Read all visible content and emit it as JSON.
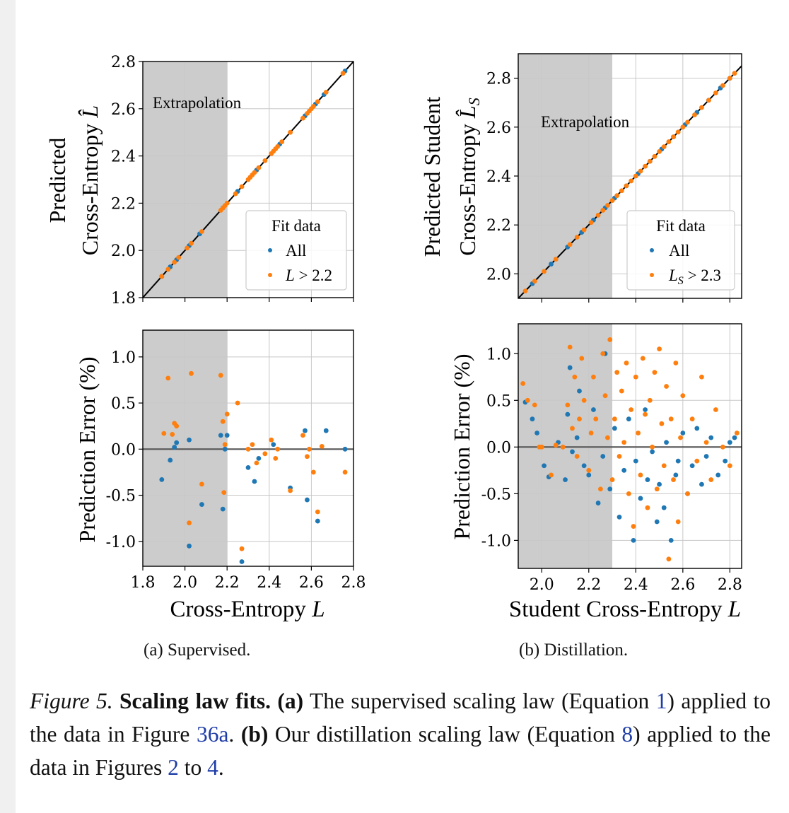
{
  "colors": {
    "all": "#1f77b4",
    "subset": "#ff7f0e",
    "shade": "#cccccc",
    "grid": "#c8c8c8",
    "diag": "#000000",
    "zero": "#555555"
  },
  "icons": [
    "marker-dot-blue",
    "marker-dot-orange"
  ],
  "panels": {
    "a": {
      "subcaption": "(a) Supervised.",
      "xlabel": "Cross-Entropy L",
      "xlabel_main": "Cross-Entropy ",
      "xlabel_sym": "L",
      "top": {
        "ylabel_line1": "Predicted",
        "ylabel_line2": "Cross-Entropy L̂",
        "ylabel_line2_main": "Cross-Entropy ",
        "ylabel_line2_sym": "L̂",
        "annotation": "Extrapolation",
        "legend_title": "Fit data",
        "legend_all": "All",
        "legend_subset": "L > 2.2",
        "legend_subset_sym": "L",
        "legend_subset_rest": " > 2.2"
      },
      "bottom": {
        "ylabel": "Prediction Error (%)"
      }
    },
    "b": {
      "subcaption": "(b) Distillation.",
      "xlabel": "Student Cross-Entropy L",
      "xlabel_main": "Student Cross-Entropy ",
      "xlabel_sym": "L",
      "top": {
        "ylabel_line1": "Predicted Student",
        "ylabel_line2": "Cross-Entropy L̂S",
        "ylabel_line2_main": "Cross-Entropy ",
        "ylabel_line2_sym": "L̂",
        "ylabel_line2_sub": "S",
        "annotation": "Extrapolation",
        "legend_title": "Fit data",
        "legend_all": "All",
        "legend_subset": "LS > 2.3",
        "legend_subset_sym": "L",
        "legend_subset_sub": "S",
        "legend_subset_rest": " > 2.3"
      },
      "bottom": {
        "ylabel": "Prediction Error (%)"
      }
    }
  },
  "caption": {
    "fig_label": "Figure 5.",
    "title": "Scaling law fits.",
    "a_label": "(a)",
    "text1": "The supervised scaling law (Equation",
    "ref_eq1": "1",
    "text2": ") applied to the data in Figure",
    "ref_fig36a": "36a",
    "text3": ".",
    "b_label": "(b)",
    "text4": "Our distillation scaling law (Equation",
    "ref_eq8": "8",
    "text5": ") applied to the data in Figures",
    "ref_fig2": "2",
    "text6": "to",
    "ref_fig4": "4",
    "text7": "."
  },
  "chart_data": [
    {
      "id": "a-top",
      "type": "scatter",
      "title": "",
      "xlabel": "",
      "ylabel": "Predicted Cross-Entropy L̂",
      "xlim": [
        1.8,
        2.8
      ],
      "ylim": [
        1.8,
        2.8
      ],
      "xticks": [
        1.8,
        2.0,
        2.2,
        2.4,
        2.6,
        2.8
      ],
      "yticks": [
        1.8,
        2.0,
        2.2,
        2.4,
        2.6,
        2.8
      ],
      "tick_labels_x": [],
      "tick_labels_y": [
        "1.8",
        "2.0",
        "2.2",
        "2.4",
        "2.6",
        "2.8"
      ],
      "grid": true,
      "shade_x": [
        1.8,
        2.2
      ],
      "reference_line": "y = x",
      "legend": "right",
      "series": [
        {
          "name": "All",
          "x": [
            1.89,
            1.93,
            1.96,
            2.02,
            2.07,
            2.18,
            2.25,
            2.34,
            2.45,
            2.57,
            2.62,
            2.66,
            2.76
          ],
          "y": [
            1.89,
            1.93,
            1.96,
            2.02,
            2.07,
            2.18,
            2.25,
            2.34,
            2.45,
            2.57,
            2.62,
            2.66,
            2.76
          ]
        },
        {
          "name": "L > 2.2",
          "x": [
            1.89,
            1.92,
            1.95,
            1.97,
            2.01,
            2.03,
            2.08,
            2.17,
            2.18,
            2.19,
            2.2,
            2.24,
            2.27,
            2.3,
            2.31,
            2.32,
            2.33,
            2.35,
            2.38,
            2.41,
            2.42,
            2.43,
            2.44,
            2.46,
            2.5,
            2.56,
            2.58,
            2.59,
            2.6,
            2.61,
            2.63,
            2.67,
            2.75
          ],
          "y": [
            1.89,
            1.92,
            1.95,
            1.97,
            2.01,
            2.03,
            2.08,
            2.17,
            2.18,
            2.19,
            2.2,
            2.24,
            2.27,
            2.3,
            2.31,
            2.32,
            2.33,
            2.35,
            2.38,
            2.41,
            2.42,
            2.43,
            2.44,
            2.46,
            2.5,
            2.56,
            2.58,
            2.59,
            2.6,
            2.61,
            2.63,
            2.67,
            2.75
          ]
        }
      ]
    },
    {
      "id": "a-bottom",
      "type": "scatter",
      "title": "",
      "xlabel": "Cross-Entropy L",
      "ylabel": "Prediction Error (%)",
      "xlim": [
        1.8,
        2.8
      ],
      "ylim": [
        -1.27,
        1.29
      ],
      "xticks": [
        1.8,
        2.0,
        2.2,
        2.4,
        2.6,
        2.8
      ],
      "yticks": [
        -1.0,
        -0.5,
        0.0,
        0.5,
        1.0
      ],
      "tick_labels_x": [
        "1.8",
        "2.0",
        "2.2",
        "2.4",
        "2.6",
        "2.8"
      ],
      "tick_labels_y": [
        "-1.0",
        "-0.5",
        "0.0",
        "0.5",
        "1.0"
      ],
      "grid": true,
      "shade_x": [
        1.8,
        2.2
      ],
      "reference_line": "y = 0",
      "series": [
        {
          "name": "All",
          "x": [
            1.89,
            1.93,
            1.95,
            1.96,
            2.02,
            2.02,
            2.08,
            2.17,
            2.18,
            2.19,
            2.2,
            2.27,
            2.3,
            2.33,
            2.35,
            2.42,
            2.5,
            2.57,
            2.58,
            2.63,
            2.67,
            2.76
          ],
          "y": [
            -0.33,
            -0.12,
            0.02,
            0.07,
            0.1,
            -1.05,
            -0.6,
            0.15,
            -0.65,
            0.0,
            0.15,
            -1.22,
            -0.2,
            -0.35,
            -0.1,
            0.05,
            -0.42,
            0.2,
            -0.55,
            -0.78,
            0.2,
            0.0
          ]
        },
        {
          "name": "L > 2.2",
          "x": [
            1.9,
            1.92,
            1.94,
            1.95,
            1.96,
            2.02,
            2.03,
            2.08,
            2.17,
            2.18,
            2.185,
            2.19,
            2.2,
            2.25,
            2.27,
            2.3,
            2.32,
            2.34,
            2.38,
            2.41,
            2.43,
            2.44,
            2.5,
            2.56,
            2.58,
            2.59,
            2.61,
            2.63,
            2.65,
            2.76
          ],
          "y": [
            0.17,
            0.77,
            0.16,
            0.28,
            0.25,
            -0.8,
            0.82,
            -0.38,
            0.8,
            0.3,
            -0.47,
            0.05,
            0.38,
            0.5,
            -1.08,
            0.0,
            0.05,
            -0.15,
            -0.05,
            0.1,
            -0.1,
            0.0,
            -0.45,
            0.15,
            -0.08,
            0.0,
            -0.25,
            -0.68,
            0.03,
            -0.25
          ]
        }
      ]
    },
    {
      "id": "b-top",
      "type": "scatter",
      "title": "",
      "xlabel": "",
      "ylabel": "Predicted Student Cross-Entropy L̂S",
      "xlim": [
        1.9,
        2.85
      ],
      "ylim": [
        1.9,
        2.9
      ],
      "xticks": [
        2.0,
        2.2,
        2.4,
        2.6,
        2.8
      ],
      "yticks": [
        2.0,
        2.2,
        2.4,
        2.6,
        2.8
      ],
      "tick_labels_x": [],
      "tick_labels_y": [
        "2.0",
        "2.2",
        "2.4",
        "2.6",
        "2.8"
      ],
      "grid": true,
      "shade_x": [
        1.9,
        2.3
      ],
      "reference_line": "y = x",
      "legend": "right",
      "series": [
        {
          "name": "All",
          "x": [
            1.96,
            2.04,
            2.11,
            2.17,
            2.22,
            2.27,
            2.31,
            2.36,
            2.41,
            2.46,
            2.51,
            2.56,
            2.61,
            2.66,
            2.71,
            2.76,
            2.8
          ],
          "y": [
            1.96,
            2.04,
            2.11,
            2.17,
            2.22,
            2.27,
            2.31,
            2.36,
            2.41,
            2.46,
            2.51,
            2.56,
            2.61,
            2.66,
            2.71,
            2.76,
            2.8
          ]
        },
        {
          "name": "LS > 2.3",
          "x": [
            1.93,
            1.97,
            2.01,
            2.06,
            2.12,
            2.15,
            2.18,
            2.21,
            2.24,
            2.26,
            2.28,
            2.3,
            2.32,
            2.34,
            2.36,
            2.38,
            2.4,
            2.42,
            2.44,
            2.46,
            2.48,
            2.5,
            2.52,
            2.54,
            2.56,
            2.58,
            2.6,
            2.62,
            2.65,
            2.68,
            2.71,
            2.74,
            2.77,
            2.8,
            2.82
          ],
          "y": [
            1.93,
            1.97,
            2.01,
            2.06,
            2.12,
            2.15,
            2.18,
            2.21,
            2.24,
            2.26,
            2.28,
            2.3,
            2.32,
            2.34,
            2.36,
            2.38,
            2.4,
            2.42,
            2.44,
            2.46,
            2.48,
            2.5,
            2.52,
            2.54,
            2.56,
            2.58,
            2.6,
            2.62,
            2.65,
            2.68,
            2.71,
            2.74,
            2.77,
            2.8,
            2.82
          ]
        }
      ]
    },
    {
      "id": "b-bottom",
      "type": "scatter",
      "title": "",
      "xlabel": "Student Cross-Entropy L",
      "ylabel": "Prediction Error (%)",
      "xlim": [
        1.9,
        2.85
      ],
      "ylim": [
        -1.3,
        1.32
      ],
      "xticks": [
        2.0,
        2.2,
        2.4,
        2.6,
        2.8
      ],
      "yticks": [
        -1.0,
        -0.5,
        0.0,
        0.5,
        1.0
      ],
      "tick_labels_x": [
        "2.0",
        "2.2",
        "2.4",
        "2.6",
        "2.8"
      ],
      "tick_labels_y": [
        "-1.0",
        "-0.5",
        "0.0",
        "0.5",
        "1.0"
      ],
      "grid": true,
      "shade_x": [
        1.9,
        2.3
      ],
      "reference_line": "y = 0",
      "series": [
        {
          "name": "All",
          "x": [
            1.93,
            1.96,
            1.98,
            2.01,
            2.03,
            2.07,
            2.1,
            2.11,
            2.12,
            2.13,
            2.15,
            2.16,
            2.18,
            2.2,
            2.22,
            2.24,
            2.26,
            2.27,
            2.29,
            2.31,
            2.33,
            2.35,
            2.37,
            2.39,
            2.4,
            2.42,
            2.44,
            2.45,
            2.47,
            2.49,
            2.5,
            2.52,
            2.53,
            2.55,
            2.57,
            2.58,
            2.6,
            2.62,
            2.64,
            2.66,
            2.68,
            2.7,
            2.72,
            2.75,
            2.78,
            2.8,
            2.82
          ],
          "y": [
            0.48,
            0.3,
            0.15,
            -0.2,
            -0.32,
            0.05,
            -0.35,
            0.35,
            0.85,
            -0.05,
            0.1,
            0.6,
            -0.2,
            -0.3,
            0.4,
            -0.6,
            -0.1,
            1.0,
            -0.45,
            0.2,
            -0.75,
            -0.25,
            0.3,
            -1.0,
            -0.15,
            -0.55,
            0.4,
            -0.35,
            -0.05,
            -0.8,
            -0.4,
            -0.65,
            0.05,
            -1.0,
            -0.3,
            -0.15,
            0.15,
            -0.5,
            -0.2,
            0.2,
            -0.4,
            -0.1,
            0.1,
            -0.3,
            -0.15,
            0.05,
            0.1
          ]
        },
        {
          "name": "LS > 2.3",
          "x": [
            1.92,
            1.94,
            1.97,
            1.99,
            2.0,
            2.04,
            2.06,
            2.09,
            2.11,
            2.12,
            2.13,
            2.14,
            2.15,
            2.16,
            2.17,
            2.18,
            2.2,
            2.21,
            2.22,
            2.23,
            2.25,
            2.26,
            2.27,
            2.28,
            2.29,
            2.3,
            2.31,
            2.32,
            2.33,
            2.34,
            2.35,
            2.36,
            2.37,
            2.38,
            2.39,
            2.4,
            2.41,
            2.42,
            2.43,
            2.44,
            2.45,
            2.46,
            2.47,
            2.48,
            2.49,
            2.5,
            2.51,
            2.52,
            2.53,
            2.54,
            2.55,
            2.56,
            2.57,
            2.58,
            2.59,
            2.6,
            2.62,
            2.64,
            2.66,
            2.68,
            2.7,
            2.72,
            2.74,
            2.77,
            2.8,
            2.83
          ],
          "y": [
            0.68,
            0.5,
            0.45,
            0.0,
            0.0,
            -0.3,
            0.02,
            0.0,
            0.45,
            1.07,
            0.2,
            0.75,
            -0.1,
            0.3,
            0.95,
            0.5,
            -0.25,
            0.15,
            0.75,
            0.3,
            -0.45,
            1.0,
            0.55,
            0.1,
            1.15,
            -0.35,
            0.3,
            0.8,
            -0.1,
            0.6,
            0.05,
            0.9,
            -0.5,
            0.4,
            -0.85,
            0.75,
            0.15,
            -0.3,
            0.95,
            0.35,
            -0.65,
            0.5,
            0.0,
            0.8,
            -0.45,
            1.05,
            0.25,
            -0.2,
            0.65,
            -1.2,
            0.3,
            -0.35,
            0.9,
            -0.8,
            0.1,
            0.55,
            -0.5,
            0.3,
            -0.15,
            0.75,
            0.05,
            -0.35,
            0.4,
            0.0,
            -0.2,
            0.15
          ]
        }
      ]
    }
  ]
}
